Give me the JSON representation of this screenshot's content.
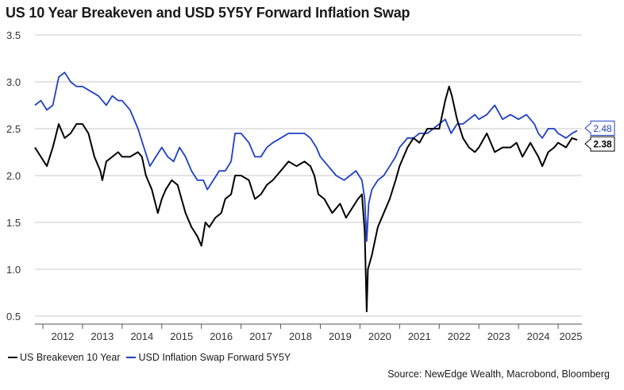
{
  "title": "US 10 Year Breakeven and USD 5Y5Y Forward Inflation Swap",
  "source": "Source: NewEdge Wealth, Macrobond, Bloomberg",
  "colors": {
    "breakeven": "#000000",
    "swap": "#1f3fc4",
    "grid": "#c8c8c8",
    "axis": "#555555"
  },
  "chart_data": {
    "type": "line",
    "title": "US 10 Year Breakeven and USD 5Y5Y Forward Inflation Swap",
    "ylim": [
      0.5,
      3.5
    ],
    "yticks": [
      "3.5",
      "3.0",
      "2.5",
      "2.0",
      "1.5",
      "1.0",
      "0.5"
    ],
    "xlim": [
      2011.8,
      2025.6
    ],
    "xticks": [
      "2012",
      "2013",
      "2014",
      "2015",
      "2016",
      "2017",
      "2018",
      "2019",
      "2020",
      "2021",
      "2022",
      "2023",
      "2024",
      "2025"
    ],
    "grid": true,
    "legend_position": "bottom-left",
    "series": [
      {
        "name": "US Breakeven 10 Year",
        "end_label": "2.38",
        "x": [
          2011.8,
          2011.95,
          2012.1,
          2012.25,
          2012.4,
          2012.55,
          2012.7,
          2012.85,
          2013.0,
          2013.15,
          2013.3,
          2013.45,
          2013.5,
          2013.6,
          2013.75,
          2013.9,
          2014.0,
          2014.2,
          2014.4,
          2014.5,
          2014.6,
          2014.75,
          2014.9,
          2015.0,
          2015.1,
          2015.25,
          2015.4,
          2015.5,
          2015.6,
          2015.75,
          2015.9,
          2016.0,
          2016.1,
          2016.2,
          2016.35,
          2016.5,
          2016.6,
          2016.75,
          2016.85,
          2017.0,
          2017.2,
          2017.35,
          2017.5,
          2017.65,
          2017.8,
          2018.0,
          2018.2,
          2018.4,
          2018.6,
          2018.75,
          2018.85,
          2018.95,
          2019.1,
          2019.3,
          2019.5,
          2019.65,
          2019.8,
          2019.95,
          2020.05,
          2020.12,
          2020.17,
          2020.2,
          2020.3,
          2020.45,
          2020.6,
          2020.75,
          2020.9,
          2021.0,
          2021.2,
          2021.35,
          2021.5,
          2021.7,
          2021.85,
          2022.0,
          2022.15,
          2022.25,
          2022.32,
          2022.45,
          2022.6,
          2022.75,
          2022.9,
          2023.0,
          2023.2,
          2023.4,
          2023.6,
          2023.8,
          2023.95,
          2024.1,
          2024.3,
          2024.5,
          2024.6,
          2024.75,
          2024.9,
          2025.0,
          2025.2,
          2025.35,
          2025.48
        ],
        "values": [
          2.3,
          2.2,
          2.1,
          2.3,
          2.55,
          2.4,
          2.45,
          2.55,
          2.55,
          2.45,
          2.2,
          2.05,
          1.95,
          2.15,
          2.2,
          2.25,
          2.2,
          2.2,
          2.25,
          2.2,
          2.0,
          1.85,
          1.6,
          1.75,
          1.85,
          1.95,
          1.9,
          1.75,
          1.6,
          1.45,
          1.35,
          1.25,
          1.5,
          1.45,
          1.55,
          1.6,
          1.75,
          1.8,
          2.0,
          2.0,
          1.95,
          1.75,
          1.8,
          1.9,
          1.95,
          2.05,
          2.15,
          2.1,
          2.15,
          2.1,
          2.0,
          1.8,
          1.75,
          1.6,
          1.7,
          1.55,
          1.65,
          1.75,
          1.8,
          1.4,
          0.55,
          1.0,
          1.15,
          1.45,
          1.6,
          1.75,
          1.95,
          2.1,
          2.3,
          2.4,
          2.35,
          2.5,
          2.5,
          2.5,
          2.8,
          2.95,
          2.85,
          2.6,
          2.4,
          2.3,
          2.25,
          2.3,
          2.45,
          2.25,
          2.3,
          2.3,
          2.35,
          2.2,
          2.35,
          2.2,
          2.1,
          2.25,
          2.3,
          2.35,
          2.3,
          2.4,
          2.38
        ]
      },
      {
        "name": "USD Inflation Swap Forward 5Y5Y",
        "end_label": "2.48",
        "x": [
          2011.8,
          2011.95,
          2012.1,
          2012.25,
          2012.4,
          2012.55,
          2012.7,
          2012.85,
          2013.0,
          2013.2,
          2013.4,
          2013.5,
          2013.6,
          2013.75,
          2013.9,
          2014.0,
          2014.2,
          2014.4,
          2014.55,
          2014.7,
          2014.85,
          2015.0,
          2015.15,
          2015.3,
          2015.45,
          2015.6,
          2015.75,
          2015.9,
          2016.05,
          2016.15,
          2016.3,
          2016.45,
          2016.6,
          2016.75,
          2016.85,
          2017.0,
          2017.2,
          2017.35,
          2017.5,
          2017.65,
          2017.8,
          2018.0,
          2018.2,
          2018.4,
          2018.6,
          2018.75,
          2018.9,
          2019.0,
          2019.2,
          2019.4,
          2019.6,
          2019.75,
          2019.9,
          2020.05,
          2020.12,
          2020.17,
          2020.22,
          2020.3,
          2020.45,
          2020.6,
          2020.75,
          2020.9,
          2021.0,
          2021.2,
          2021.35,
          2021.5,
          2021.7,
          2021.85,
          2022.0,
          2022.15,
          2022.3,
          2022.45,
          2022.6,
          2022.75,
          2022.9,
          2023.0,
          2023.2,
          2023.4,
          2023.6,
          2023.8,
          2024.0,
          2024.2,
          2024.4,
          2024.5,
          2024.6,
          2024.75,
          2024.9,
          2025.0,
          2025.2,
          2025.35,
          2025.48
        ],
        "values": [
          2.75,
          2.8,
          2.7,
          2.75,
          3.05,
          3.1,
          3.0,
          2.95,
          2.95,
          2.9,
          2.85,
          2.8,
          2.75,
          2.85,
          2.8,
          2.8,
          2.7,
          2.5,
          2.3,
          2.1,
          2.2,
          2.3,
          2.2,
          2.15,
          2.3,
          2.2,
          2.05,
          1.95,
          1.95,
          1.85,
          1.95,
          2.05,
          2.05,
          2.15,
          2.45,
          2.45,
          2.35,
          2.2,
          2.2,
          2.3,
          2.35,
          2.4,
          2.45,
          2.45,
          2.45,
          2.4,
          2.3,
          2.2,
          2.1,
          2.0,
          1.95,
          2.0,
          2.05,
          1.95,
          1.75,
          1.3,
          1.7,
          1.85,
          1.95,
          2.0,
          2.1,
          2.2,
          2.3,
          2.4,
          2.4,
          2.45,
          2.45,
          2.5,
          2.55,
          2.6,
          2.45,
          2.55,
          2.55,
          2.6,
          2.65,
          2.6,
          2.65,
          2.75,
          2.6,
          2.65,
          2.6,
          2.65,
          2.55,
          2.45,
          2.4,
          2.5,
          2.5,
          2.45,
          2.4,
          2.45,
          2.48
        ]
      }
    ]
  }
}
